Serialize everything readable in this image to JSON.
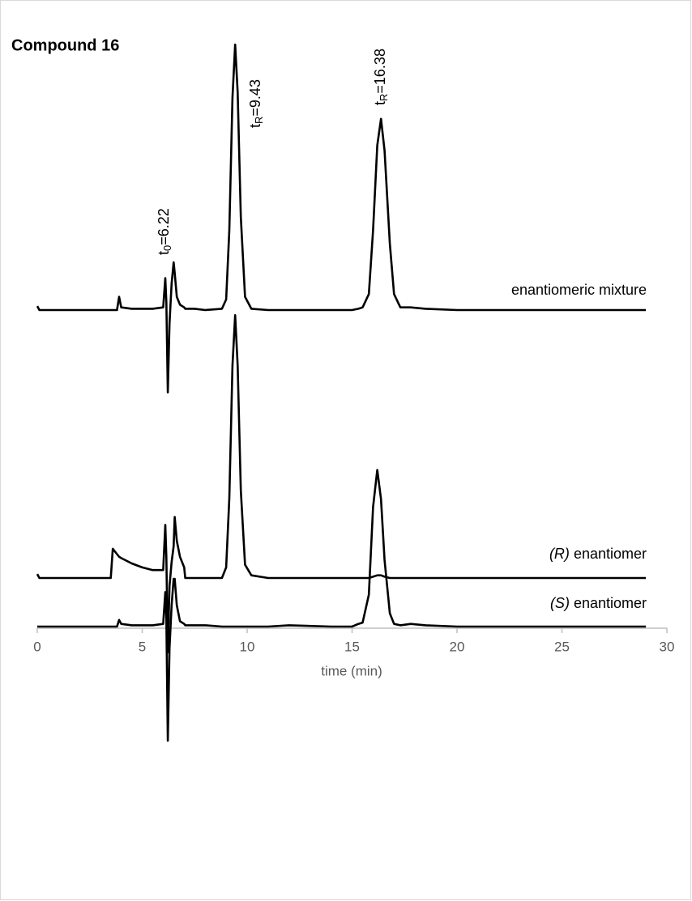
{
  "chart_data": {
    "type": "line",
    "title": "Compound 16",
    "xlabel": "time (min)",
    "xlim": [
      0,
      30
    ],
    "xticks": [
      0,
      5,
      10,
      15,
      20,
      25,
      30
    ],
    "x": [
      0,
      0.1,
      3.5,
      3.6,
      3.8,
      3.9,
      4.0,
      4.5,
      5.0,
      5.5,
      6.0,
      6.1,
      6.15,
      6.22,
      6.3,
      6.4,
      6.5,
      6.55,
      6.65,
      6.8,
      7.0,
      7.05,
      7.5,
      8.0,
      8.8,
      9.0,
      9.15,
      9.3,
      9.43,
      9.55,
      9.7,
      9.9,
      10.2,
      11,
      12,
      14,
      15,
      15.3,
      15.5,
      15.8,
      16.0,
      16.2,
      16.38,
      16.55,
      16.8,
      17.0,
      17.3,
      17.8,
      18.5,
      20,
      25,
      29
    ],
    "series": [
      {
        "name": "enantiomeric mixture",
        "color": "#000000",
        "values": [
          1.5,
          0,
          0,
          0,
          0,
          5,
          1,
          0.5,
          0.5,
          0.5,
          1,
          12,
          3,
          -31,
          -5,
          10,
          18,
          14,
          5,
          2,
          1,
          0.5,
          0.5,
          0,
          0.5,
          4,
          30,
          80,
          100,
          82,
          35,
          5,
          0.5,
          0,
          0,
          0,
          0,
          0.5,
          1,
          6,
          30,
          62,
          72,
          60,
          25,
          6,
          1,
          1,
          0.5,
          0,
          0,
          0
        ]
      },
      {
        "name": "(R) enantiomer",
        "color": "#000000",
        "values": [
          1.5,
          0,
          0,
          11,
          9,
          8,
          7.5,
          5.5,
          4,
          3,
          3,
          20,
          8,
          -28,
          -3,
          6,
          12,
          23,
          14,
          8,
          4,
          0,
          0,
          0,
          0,
          4,
          30,
          80,
          99,
          80,
          33,
          5,
          1,
          0,
          0,
          0,
          0,
          0,
          0,
          0,
          0.5,
          1,
          1,
          0.5,
          0,
          0,
          0,
          0,
          0,
          0,
          0,
          0
        ]
      },
      {
        "name": "(S) enantiomer",
        "color": "#000000",
        "values": [
          0,
          0,
          0,
          0,
          0,
          2.5,
          1,
          0.5,
          0.5,
          0.5,
          1,
          13,
          3,
          -43,
          -8,
          8,
          18,
          18,
          8,
          2,
          1,
          0.5,
          0.5,
          0.5,
          0,
          0,
          0,
          0,
          0,
          0,
          0,
          0,
          0,
          0,
          0.5,
          0,
          0,
          1,
          1.5,
          12,
          45,
          59,
          48,
          25,
          5,
          1,
          0.5,
          1,
          0.5,
          0,
          0,
          0
        ]
      }
    ],
    "annotations": [
      {
        "x": 6.22,
        "symbol": "t",
        "sub": "0",
        "text": "=6.22"
      },
      {
        "x": 9.43,
        "symbol": "t",
        "sub": "R",
        "text": "=9.43"
      },
      {
        "x": 16.38,
        "symbol": "t",
        "sub": "R",
        "text": "=16.38"
      }
    ]
  }
}
